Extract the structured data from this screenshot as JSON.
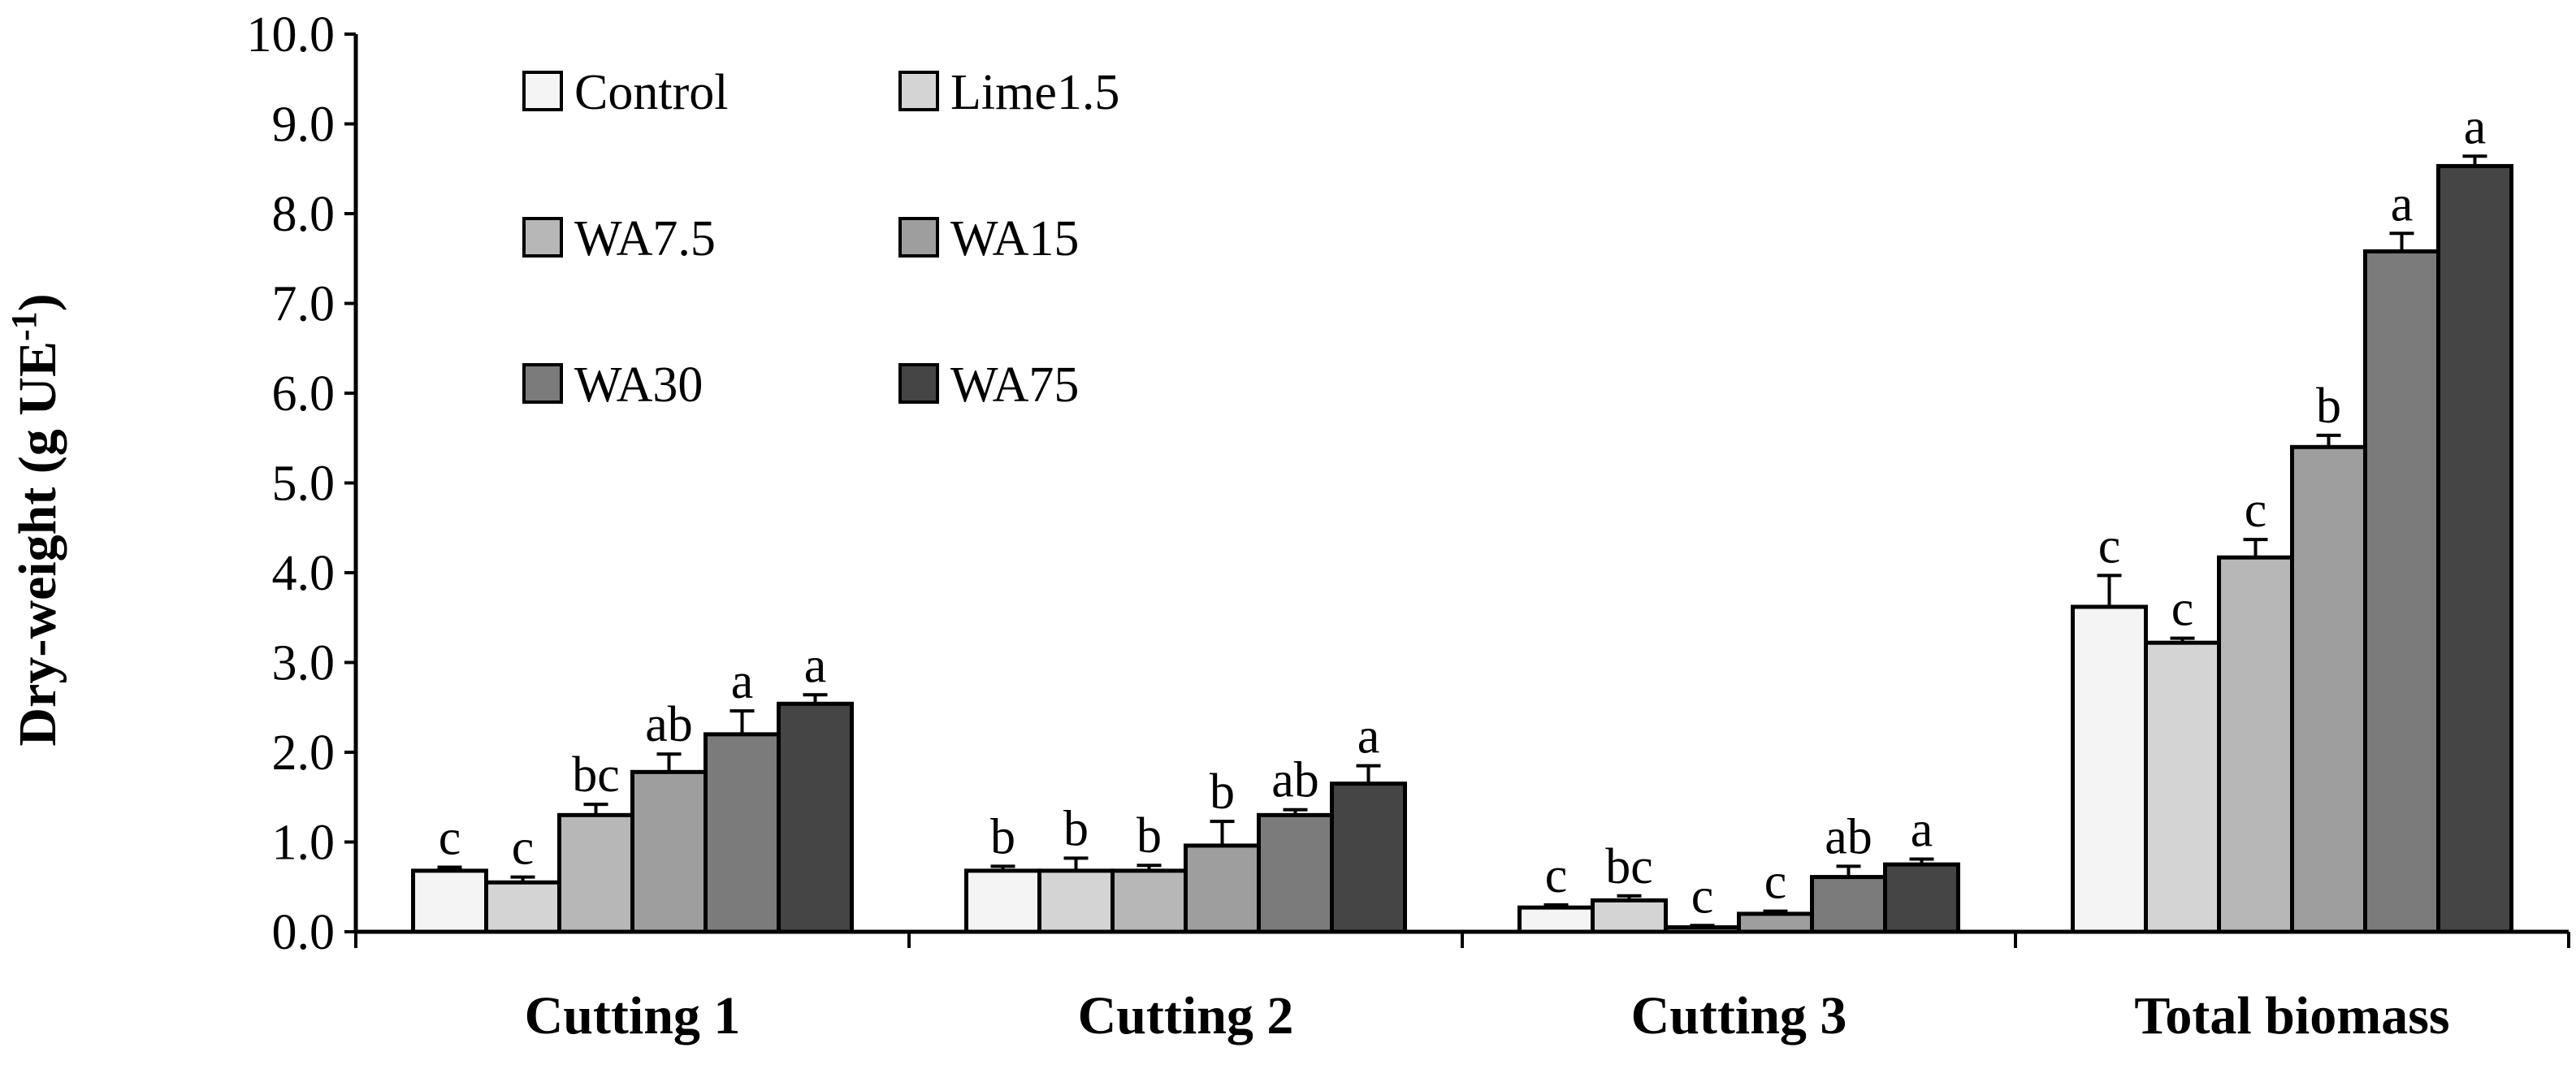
{
  "chart_data": {
    "type": "bar",
    "title": "",
    "xlabel": "",
    "ylabel": "Dry-weight (g UE",
    "ylabel_sup": "-1",
    "ylabel_close": ")",
    "ylim": [
      0,
      10
    ],
    "yticks": [
      "0.0",
      "1.0",
      "2.0",
      "3.0",
      "4.0",
      "5.0",
      "6.0",
      "7.0",
      "8.0",
      "9.0",
      "10.0"
    ],
    "categories": [
      "Cutting 1",
      "Cutting 2",
      "Cutting 3",
      "Total biomass"
    ],
    "legend_position": "top-left",
    "series": [
      {
        "name": "Control",
        "color": "#f4f4f4",
        "values": [
          0.68,
          0.68,
          0.27,
          3.62
        ],
        "errors": [
          0.04,
          0.05,
          0.03,
          0.35
        ],
        "letters": [
          "c",
          "b",
          "c",
          "c"
        ]
      },
      {
        "name": "Lime1.5",
        "color": "#d4d4d4",
        "values": [
          0.55,
          0.68,
          0.35,
          3.22
        ],
        "errors": [
          0.06,
          0.14,
          0.05,
          0.05
        ],
        "letters": [
          "c",
          "b",
          "bc",
          "c"
        ]
      },
      {
        "name": "WA7.5",
        "color": "#b7b7b7",
        "values": [
          1.3,
          0.68,
          0.05,
          4.17
        ],
        "errors": [
          0.12,
          0.06,
          0.02,
          0.2
        ],
        "letters": [
          "bc",
          "b",
          "c",
          "c"
        ]
      },
      {
        "name": "WA15",
        "color": "#9e9e9e",
        "values": [
          1.78,
          0.96,
          0.2,
          5.4
        ],
        "errors": [
          0.2,
          0.27,
          0.03,
          0.13
        ],
        "letters": [
          "ab",
          "b",
          "c",
          "b"
        ]
      },
      {
        "name": "WA30",
        "color": "#7b7b7b",
        "values": [
          2.2,
          1.3,
          0.61,
          7.58
        ],
        "errors": [
          0.26,
          0.06,
          0.12,
          0.2
        ],
        "letters": [
          "a",
          "ab",
          "ab",
          "a"
        ]
      },
      {
        "name": "WA75",
        "color": "#454545",
        "values": [
          2.54,
          1.65,
          0.75,
          8.53
        ],
        "errors": [
          0.1,
          0.2,
          0.06,
          0.11
        ],
        "letters": [
          "a",
          "a",
          "a",
          "a"
        ]
      }
    ]
  }
}
